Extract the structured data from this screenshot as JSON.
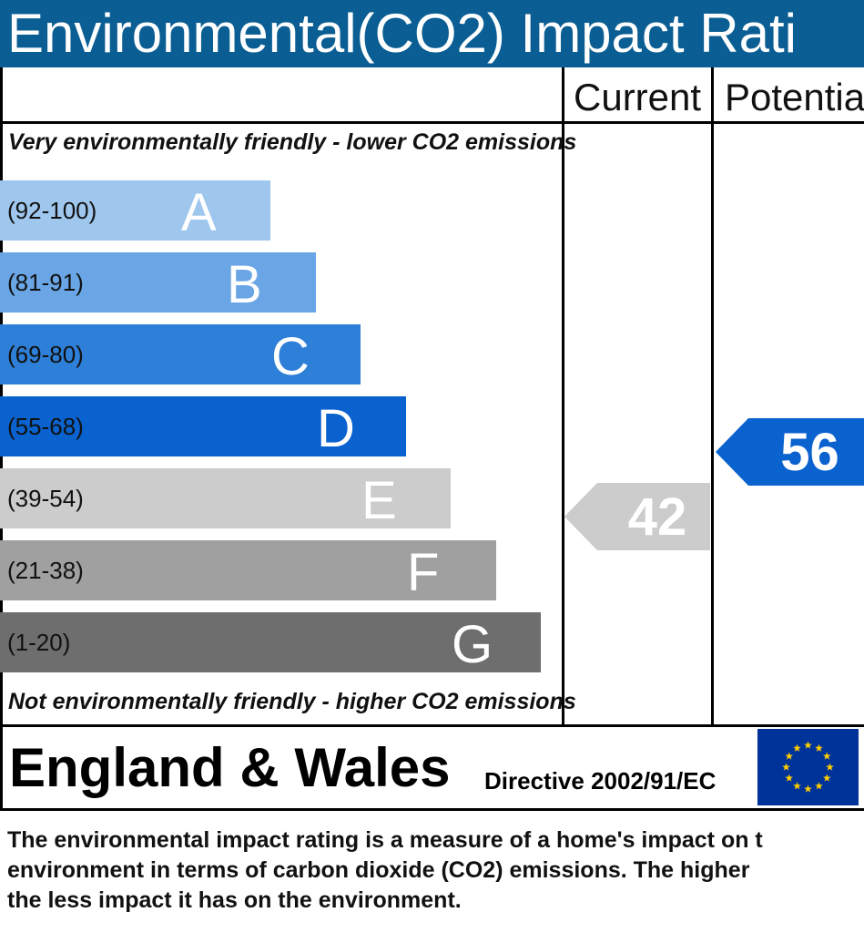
{
  "title": "Environmental(CO2) Impact Rati",
  "headers": {
    "current": "Current",
    "potential": "Potentia"
  },
  "top_caption": "Very environmentally friendly - lower CO2 emissions",
  "bottom_caption": "Not environmentally friendly - higher CO2 emissions",
  "chart_data": {
    "type": "bar",
    "bands": [
      {
        "letter": "A",
        "range": "(92-100)",
        "color": "#9fc7ee"
      },
      {
        "letter": "B",
        "range": "(81-91)",
        "color": "#6aa6e6"
      },
      {
        "letter": "C",
        "range": "(69-80)",
        "color": "#2e7fd8"
      },
      {
        "letter": "D",
        "range": "(55-68)",
        "color": "#0a62cf"
      },
      {
        "letter": "E",
        "range": "(39-54)",
        "color": "#cccccc"
      },
      {
        "letter": "F",
        "range": "(21-38)",
        "color": "#a0a0a0"
      },
      {
        "letter": "G",
        "range": "(1-20)",
        "color": "#6e6e6e"
      }
    ],
    "current": {
      "value": 42,
      "band": "E",
      "color": "#cccccc"
    },
    "potential": {
      "value": 56,
      "band": "D",
      "color": "#0a62cf"
    }
  },
  "footer": {
    "country": "England & Wales",
    "directive": "Directive 2002/91/EC",
    "flag_icon": "eu-flag-icon"
  },
  "description": [
    "The environmental impact rating is a measure of a home's impact on t",
    "environment in terms of carbon dioxide (CO2) emissions. The higher",
    "the less impact it has on the environment."
  ]
}
